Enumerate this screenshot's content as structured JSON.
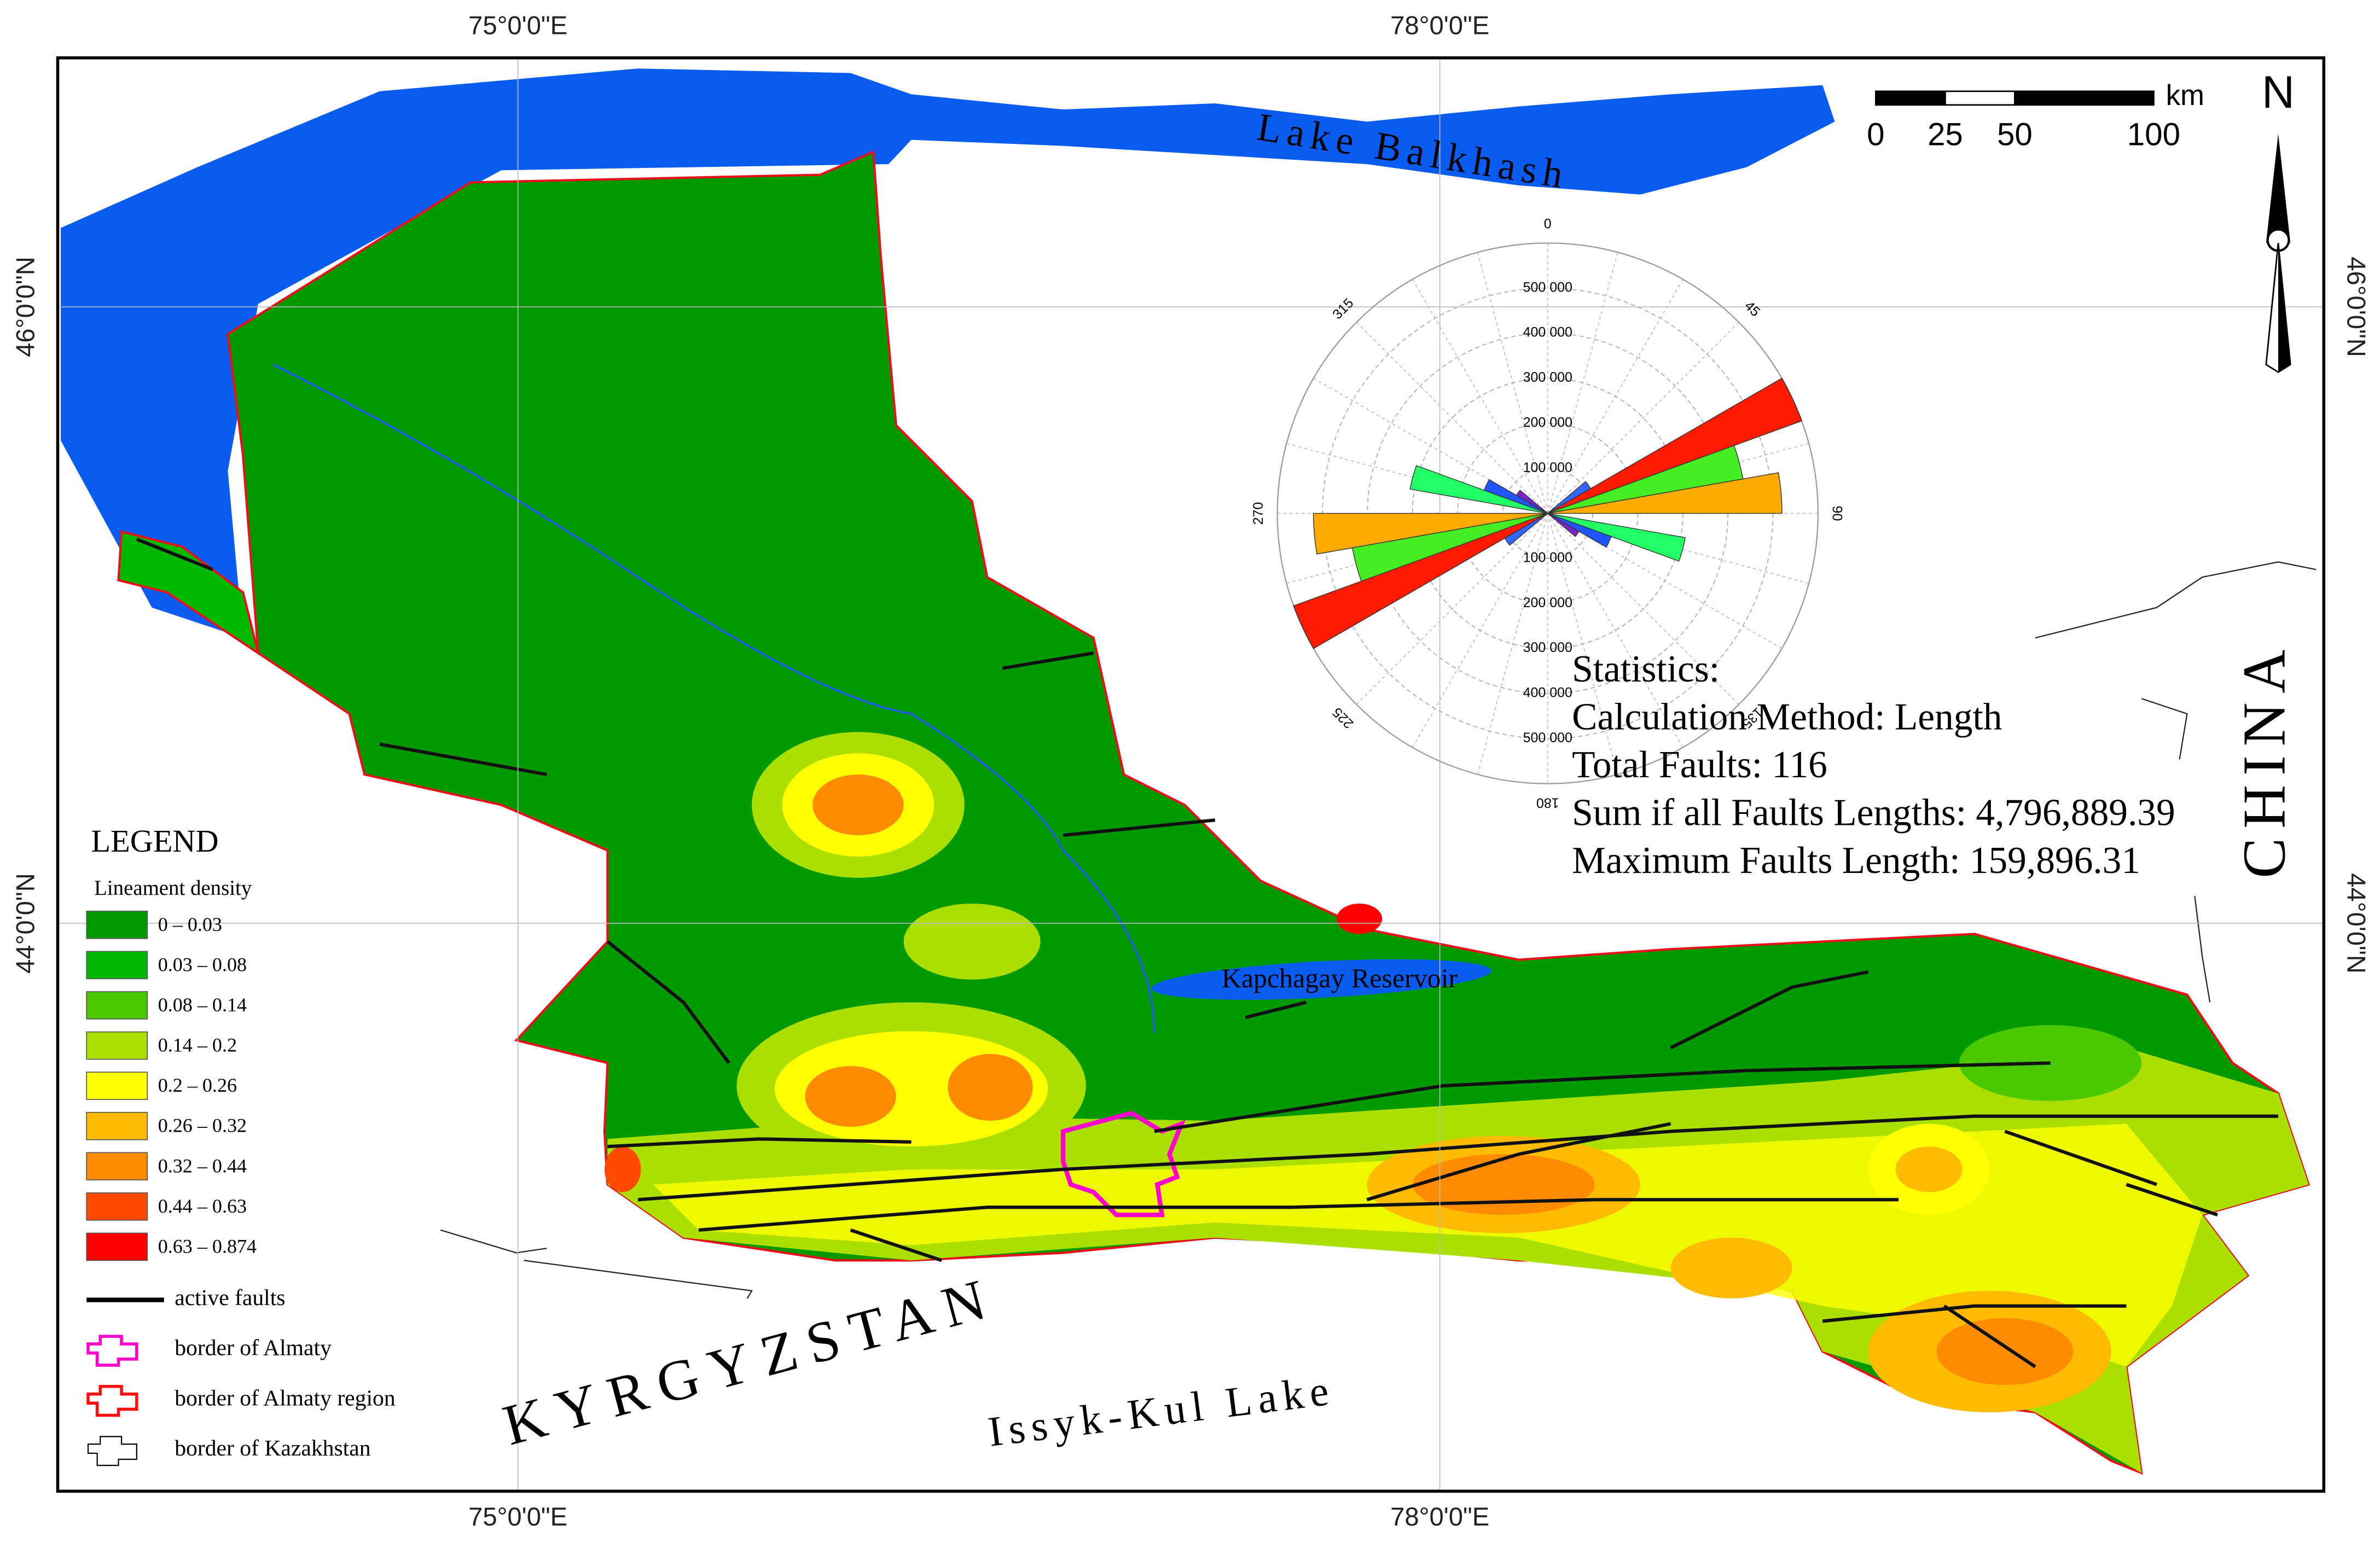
{
  "graticule": {
    "top": [
      "75°0'0\"E",
      "78°0'0\"E"
    ],
    "bottom": [
      "75°0'0\"E",
      "78°0'0\"E"
    ],
    "left": [
      "46°0'0\"N",
      "44°0'0\"N"
    ],
    "right": [
      "46°0'0\"N",
      "44°0'0\"N"
    ]
  },
  "scale_bar": {
    "ticks": [
      0,
      25,
      50,
      100
    ],
    "unit": "km"
  },
  "north": "N",
  "place_labels": {
    "lake_balkhash": "Lake Balkhash",
    "kapchagay": "Kapchagay Reservoir",
    "kyrgyzstan": "KYRGYZSTAN",
    "issyk_kul": "Issyk-Kul Lake",
    "china": "CHINA"
  },
  "legend": {
    "title": "LEGEND",
    "subtitle": "Lineament density",
    "classes": [
      {
        "label": "0 – 0.03",
        "color": "#009a00"
      },
      {
        "label": "0.03 – 0.08",
        "color": "#00b800"
      },
      {
        "label": "0.08 – 0.14",
        "color": "#4cc800"
      },
      {
        "label": "0.14 – 0.2",
        "color": "#aadf00"
      },
      {
        "label": "0.2 – 0.26",
        "color": "#ffff00"
      },
      {
        "label": "0.26 – 0.32",
        "color": "#ffbb00"
      },
      {
        "label": "0.32 – 0.44",
        "color": "#ff8c00"
      },
      {
        "label": "0.44 – 0.63",
        "color": "#ff4a00"
      },
      {
        "label": "0.63 – 0.874",
        "color": "#ff0000"
      }
    ],
    "lines": [
      "active faults",
      "border of Almaty",
      "border of Almaty region",
      "border of Kazakhstan"
    ]
  },
  "statistics": [
    "Statistics:",
    "Calculation Method: Length",
    "Total Faults: 116",
    "Sum if all Faults Lengths: 4,796,889.39",
    "Maximum Faults Length: 159,896.31"
  ],
  "chart_data": {
    "type": "rose",
    "rlim": [
      0,
      600000
    ],
    "rticks": [
      {
        "value": 100000,
        "label": "100 000"
      },
      {
        "value": 200000,
        "label": "200 000"
      },
      {
        "value": 300000,
        "label": "300 000"
      },
      {
        "value": 400000,
        "label": "400 000"
      },
      {
        "value": 500000,
        "label": "500 000"
      }
    ],
    "angle_ticks": [
      0,
      45,
      90,
      135,
      180,
      225,
      270,
      315
    ],
    "bin_width": 10,
    "petals": [
      {
        "direction": 65,
        "value": 600000,
        "color": "#ff1a00"
      },
      {
        "direction": 75,
        "value": 440000,
        "color": "#44ee22"
      },
      {
        "direction": 85,
        "value": 520000,
        "color": "#ffaa00"
      },
      {
        "direction": 105,
        "value": 310000,
        "color": "#22ff66"
      },
      {
        "direction": 115,
        "value": 150000,
        "color": "#2255ff"
      },
      {
        "direction": 125,
        "value": 80000,
        "color": "#7a22cc"
      },
      {
        "direction": 55,
        "value": 110000,
        "color": "#3366ff"
      }
    ]
  }
}
